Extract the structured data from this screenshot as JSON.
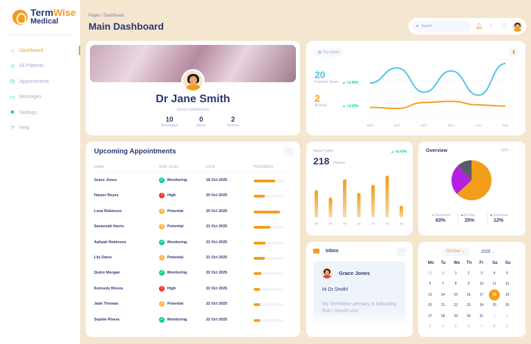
{
  "brand": {
    "name_part1": "Term",
    "name_part2": "Wise",
    "name_line2": "Medical"
  },
  "sidebar": {
    "items": [
      {
        "label": "Dashboard",
        "icon": "home-icon",
        "active": true
      },
      {
        "label": "All Patients",
        "icon": "users-icon"
      },
      {
        "label": "Appointments",
        "icon": "clock-icon"
      },
      {
        "label": "Messages",
        "icon": "chat-icon"
      },
      {
        "label": "Settings",
        "icon": "gear-icon"
      },
      {
        "label": "Help",
        "icon": "help-icon"
      }
    ]
  },
  "header": {
    "breadcrumb": "Pages / Dashboard",
    "title": "Main Dashboard"
  },
  "topbar": {
    "search_placeholder": "Search",
    "icons": [
      "bell-icon",
      "moon-icon",
      "info-icon",
      "avatar"
    ]
  },
  "profile": {
    "name": "Dr Jane Smith",
    "role": "Senior Obstetrician",
    "stats": [
      {
        "value": "10",
        "label": "Messages"
      },
      {
        "value": "0",
        "label": "Alerts"
      },
      {
        "value": "2",
        "label": "Actions"
      }
    ]
  },
  "monthly": {
    "period_label": "This month",
    "patients_seen": {
      "value": "20",
      "label": "Patients Seen",
      "trend": "+2.45%"
    },
    "at_risk": {
      "value": "2",
      "label": "At Risk",
      "trend": "+3.03%"
    }
  },
  "appointments": {
    "title": "Upcoming Appointments",
    "columns": [
      "NAME",
      "RISK LEVEL",
      "DATE",
      "PROGRESS"
    ],
    "rows": [
      {
        "name": "Grace Jones",
        "risk": "Monitoring",
        "date": "18 Oct 2025",
        "progress": 0.72
      },
      {
        "name": "Harper Reyes",
        "risk": "High",
        "date": "20 Oct 2025",
        "progress": 0.38
      },
      {
        "name": "Luna Robinson",
        "risk": "Potential",
        "date": "20 Oct 2025",
        "progress": 0.88
      },
      {
        "name": "Savannah Harris",
        "risk": "Potential",
        "date": "21 Oct 2025",
        "progress": 0.55
      },
      {
        "name": "Aaliyah Robinson",
        "risk": "Monitoring",
        "date": "21 Oct 2025",
        "progress": 0.4
      },
      {
        "name": "Lily Davis",
        "risk": "Potential",
        "date": "21 Oct 2025",
        "progress": 0.38
      },
      {
        "name": "Quinn Morgan",
        "risk": "Monitoring",
        "date": "22 Oct 2025",
        "progress": 0.25
      },
      {
        "name": "Kennedy Rivera",
        "risk": "High",
        "date": "22 Oct 2025",
        "progress": 0.22
      },
      {
        "name": "Jade Thomas",
        "risk": "Potential",
        "date": "22 Oct 2025",
        "progress": 0.22
      },
      {
        "name": "Sophie Rivera",
        "risk": "Monitoring",
        "date": "22 Oct 2025",
        "progress": 0.22
      }
    ]
  },
  "risk_colors": {
    "Monitoring": "#05cd99",
    "High": "#ee2d2d",
    "Potential": "#ffb547"
  },
  "ward": {
    "title": "Ward Traffic",
    "value": "218",
    "label": "Visitors",
    "trend": "+5.43%"
  },
  "overview": {
    "title": "Overview",
    "year": "2025",
    "legend": [
      {
        "label": "Monitored",
        "value": "63%",
        "color": "#f29e1b"
      },
      {
        "label": "At Risk",
        "value": "25%",
        "color": "#b620e0"
      },
      {
        "label": "Delivered",
        "value": "12%",
        "color": "#5b5b66"
      }
    ]
  },
  "inbox": {
    "title": "Inbox",
    "sender": "Grace Jones",
    "greeting": "Hi Dr Smith!",
    "preview": "My TermWise pessary is indicating that I should visit"
  },
  "calendar": {
    "month": "October",
    "year": "2025",
    "weekdays": [
      "Mo",
      "Tu",
      "We",
      "Th",
      "Fr",
      "Sa",
      "Su"
    ],
    "weeks": [
      [
        "29",
        "30",
        "1",
        "2",
        "3",
        "4",
        "5"
      ],
      [
        "6",
        "7",
        "8",
        "9",
        "10",
        "11",
        "12"
      ],
      [
        "13",
        "14",
        "15",
        "16",
        "17",
        "18",
        "19"
      ],
      [
        "20",
        "21",
        "22",
        "23",
        "24",
        "25",
        "26"
      ],
      [
        "27",
        "28",
        "29",
        "30",
        "31",
        "1",
        "2"
      ],
      [
        "3",
        "4",
        "5",
        "6",
        "7",
        "8",
        "9"
      ]
    ],
    "selected": "18"
  },
  "chart_data": [
    {
      "type": "line",
      "title": "",
      "x": [
        "SEP",
        "OCT",
        "NOV",
        "DEC",
        "JAN",
        "FEB"
      ],
      "series": [
        {
          "name": "",
          "color": "#4fc3e8",
          "values": [
            60,
            85,
            45,
            80,
            40,
            92
          ]
        },
        {
          "name": "",
          "color": "#f29e1b",
          "values": [
            20,
            18,
            28,
            30,
            24,
            22
          ]
        }
      ]
    },
    {
      "type": "bar",
      "title": "Ward Traffic",
      "categories": [
        "00",
        "04",
        "08",
        "12",
        "14",
        "16",
        "18"
      ],
      "values": [
        30,
        22,
        42,
        27,
        36,
        46,
        13
      ],
      "color": "#f29e1b"
    },
    {
      "type": "pie",
      "title": "Overview",
      "categories": [
        "Monitored",
        "At Risk",
        "Delivered"
      ],
      "values": [
        63,
        25,
        12
      ],
      "colors": [
        "#f29e1b",
        "#b620e0",
        "#5b5b66"
      ]
    }
  ]
}
